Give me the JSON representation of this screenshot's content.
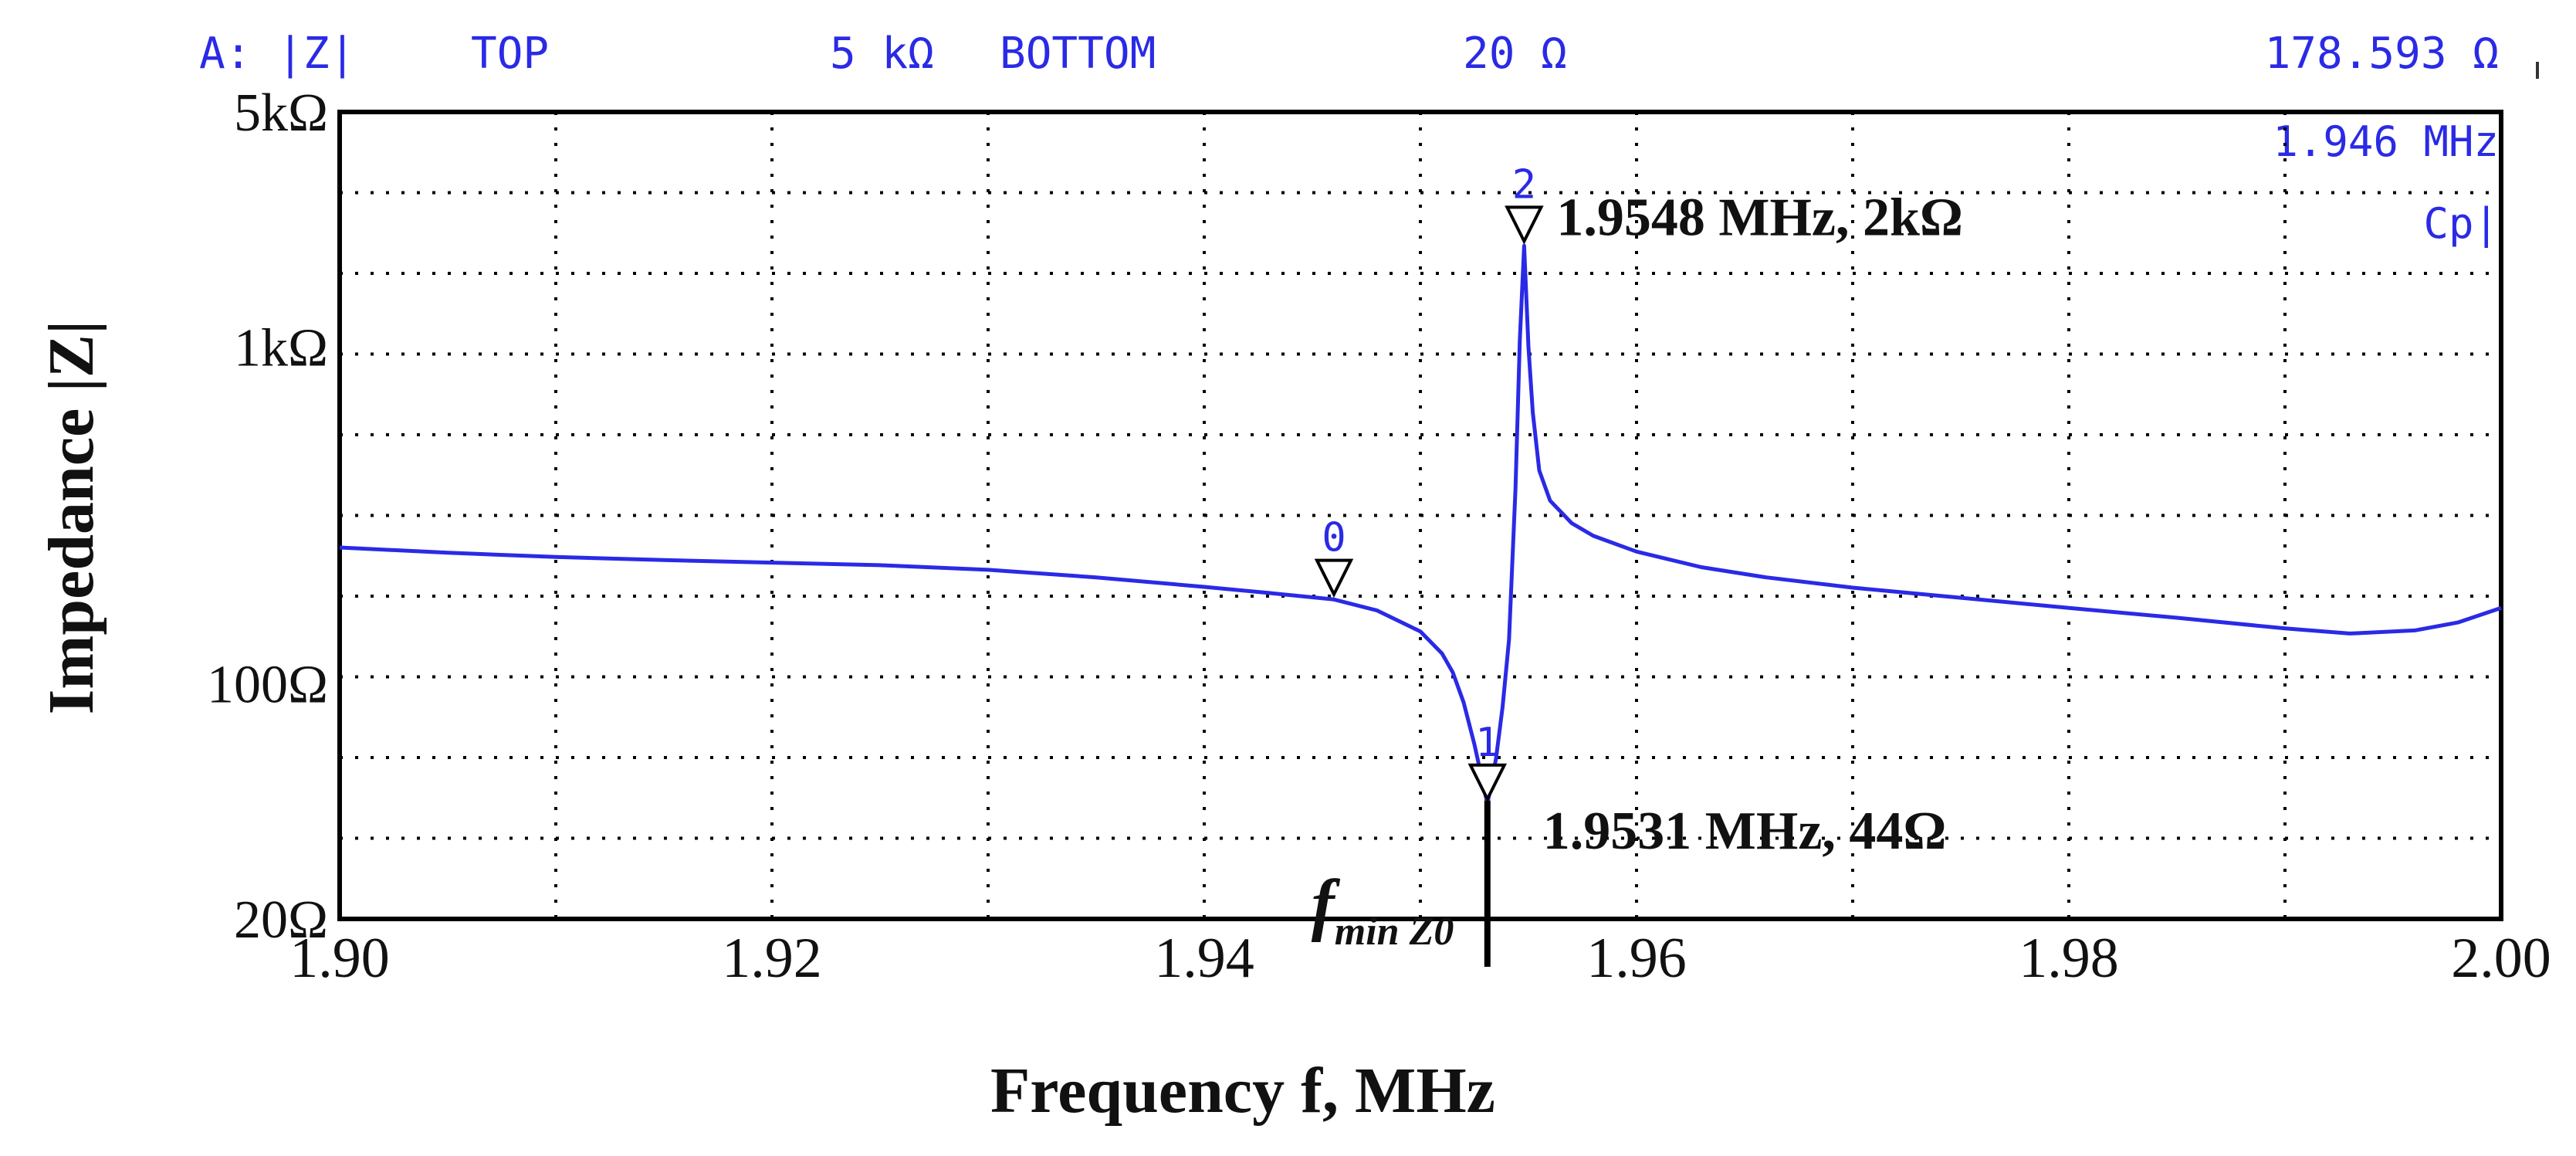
{
  "header": {
    "channel": "A: |Z|",
    "top_label": "TOP",
    "top_value": "5 kΩ",
    "bottom_label": "BOTTOM",
    "bottom_value": "20 Ω",
    "marker_readout_value": "178.593 Ω",
    "marker_readout_freq": "1.946 MHz",
    "param_mode": "Cp|"
  },
  "chart_data": {
    "type": "line",
    "title": "",
    "xlabel": "Frequency f, MHz",
    "ylabel": "Impedance |Z|",
    "xlim": [
      1.9,
      2.0
    ],
    "ylim": [
      20,
      5000
    ],
    "yscale": "log",
    "grid": true,
    "x_ticks": [
      {
        "v": 1.9,
        "label": "1.90"
      },
      {
        "v": 1.92,
        "label": "1.92"
      },
      {
        "v": 1.94,
        "label": "1.94"
      },
      {
        "v": 1.96,
        "label": "1.96"
      },
      {
        "v": 1.98,
        "label": "1.98"
      },
      {
        "v": 2.0,
        "label": "2.00"
      }
    ],
    "y_ticks": [
      {
        "v": 5000,
        "label": "5kΩ"
      },
      {
        "v": 1000,
        "label": "1kΩ"
      },
      {
        "v": 100,
        "label": "100Ω"
      },
      {
        "v": 20,
        "label": "20Ω"
      }
    ],
    "series": [
      {
        "name": "|Z|",
        "color": "#2a2ae6",
        "x": [
          1.9,
          1.905,
          1.91,
          1.915,
          1.92,
          1.925,
          1.93,
          1.935,
          1.94,
          1.943,
          1.946,
          1.948,
          1.95,
          1.951,
          1.9515,
          1.952,
          1.9525,
          1.9531,
          1.9535,
          1.9538,
          1.9541,
          1.9544,
          1.9546,
          1.9548,
          1.955,
          1.9552,
          1.9555,
          1.956,
          1.957,
          1.958,
          1.96,
          1.963,
          1.966,
          1.97,
          1.975,
          1.98,
          1.985,
          1.99,
          1.993,
          1.996,
          1.998,
          2.0
        ],
        "y": [
          254,
          245,
          238,
          233,
          229,
          225,
          218,
          207,
          194,
          186,
          178,
          165,
          143,
          123,
          108,
          88,
          66,
          44,
          60,
          85,
          135,
          380,
          1050,
          2000,
          1000,
          640,
          430,
          350,
          300,
          275,
          247,
          222,
          207,
          193,
          180,
          168,
          157,
          146,
          141,
          144,
          152,
          168
        ]
      }
    ],
    "markers": [
      {
        "id": "0",
        "x": 1.946,
        "y": 178.593
      },
      {
        "id": "1",
        "x": 1.9531,
        "y": 44
      },
      {
        "id": "2",
        "x": 1.9548,
        "y": 2000
      }
    ],
    "annotations": {
      "peak_label": "1.9548 MHz, 2kΩ",
      "min_label": "1.9531 MHz, 44Ω",
      "fmin_main": "f",
      "fmin_sub": "min Z0"
    }
  }
}
